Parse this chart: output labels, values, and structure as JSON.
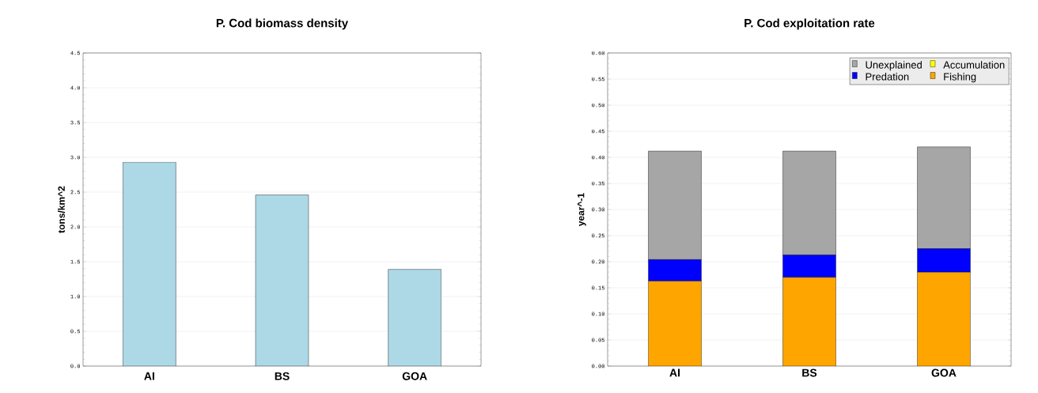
{
  "chart_data": [
    {
      "type": "bar",
      "title": "P. Cod biomass density",
      "ylabel": "tons/km^2",
      "categories": [
        "AI",
        "BS",
        "GOA"
      ],
      "values": [
        2.93,
        2.46,
        1.39
      ],
      "color": "#add8e6",
      "ylim": [
        0,
        4.5
      ],
      "yticks": [
        {
          "value": 0,
          "label": "0.0"
        },
        0.5,
        {
          "value": 1,
          "label": "1.0"
        },
        1.5,
        {
          "value": 2,
          "label": "2.0"
        },
        2.5,
        {
          "value": 3,
          "label": "3.0"
        },
        3.5,
        {
          "value": 4,
          "label": "4.0"
        },
        4.5
      ],
      "grid": "y",
      "legend": false
    },
    {
      "type": "bar",
      "title": "P. Cod exploitation rate",
      "ylabel": "year^-1",
      "categories": [
        "AI",
        "BS",
        "GOA"
      ],
      "stacked": true,
      "series": [
        {
          "name": "Fishing",
          "color": "#ffa500",
          "values": [
            0.163,
            0.17,
            0.18
          ]
        },
        {
          "name": "Predation",
          "color": "#0000ff",
          "values": [
            0.041,
            0.043,
            0.045
          ]
        },
        {
          "name": "Accumulation",
          "color": "#ffff00",
          "values": [
            0,
            0,
            0
          ]
        },
        {
          "name": "Unexplained",
          "color": "#a6a6a6",
          "values": [
            0.208,
            0.199,
            0.195
          ]
        }
      ],
      "ylim": [
        0,
        0.6
      ],
      "yticks": [
        {
          "value": 0,
          "label": "0.00"
        },
        0.05,
        {
          "value": 0.1,
          "label": "0.10"
        },
        0.15,
        {
          "value": 0.2,
          "label": "0.20"
        },
        0.25,
        {
          "value": 0.3,
          "label": "0.30"
        },
        0.35,
        {
          "value": 0.4,
          "label": "0.40"
        },
        0.45,
        {
          "value": 0.5,
          "label": "0.50"
        },
        0.55,
        {
          "value": 0.6,
          "label": "0.60"
        }
      ],
      "grid": "y",
      "legend": "top right"
    }
  ]
}
